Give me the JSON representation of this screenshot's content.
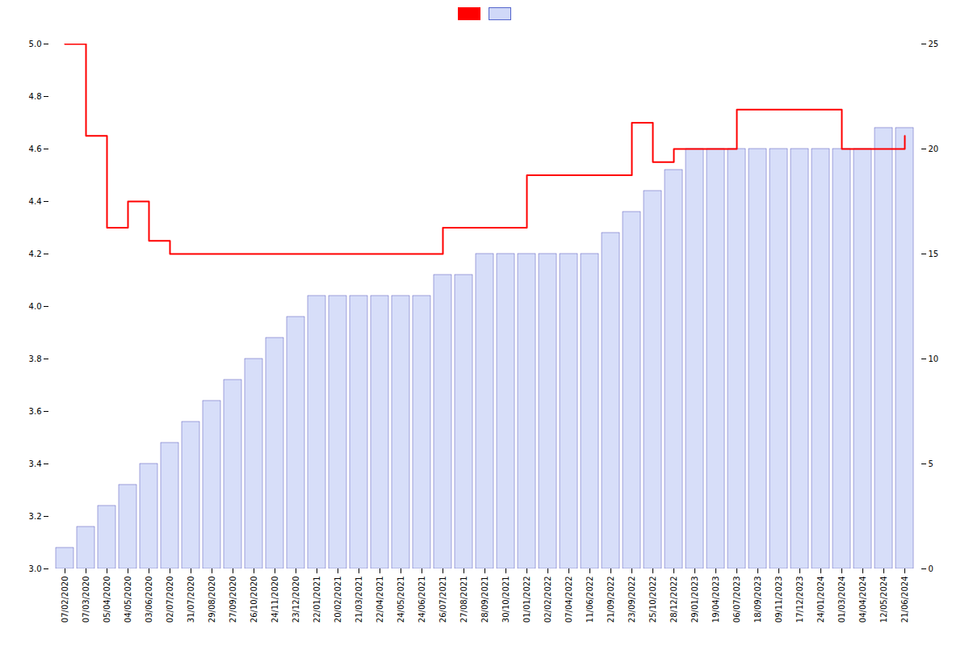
{
  "chart_data": {
    "type": "bar",
    "categories": [
      "07/02/2020",
      "07/03/2020",
      "05/04/2020",
      "04/05/2020",
      "03/06/2020",
      "02/07/2020",
      "31/07/2020",
      "29/08/2020",
      "27/09/2020",
      "26/10/2020",
      "24/11/2020",
      "23/12/2020",
      "22/01/2021",
      "20/02/2021",
      "21/03/2021",
      "22/04/2021",
      "24/05/2021",
      "24/06/2021",
      "26/07/2021",
      "27/08/2021",
      "28/09/2021",
      "30/10/2021",
      "01/01/2022",
      "02/02/2022",
      "07/04/2022",
      "11/06/2022",
      "21/09/2022",
      "23/09/2022",
      "25/10/2022",
      "28/12/2022",
      "29/01/2023",
      "19/04/2023",
      "06/07/2023",
      "18/09/2023",
      "09/11/2023",
      "17/12/2023",
      "24/01/2024",
      "01/03/2024",
      "04/04/2024",
      "12/05/2024",
      "21/06/2024"
    ],
    "series": [
      {
        "type": "step",
        "color": "#ff0000",
        "values": [
          5.0,
          4.65,
          4.3,
          4.4,
          4.25,
          4.2,
          4.2,
          4.2,
          4.2,
          4.2,
          4.2,
          4.2,
          4.2,
          4.2,
          4.2,
          4.2,
          4.2,
          4.2,
          4.3,
          4.3,
          4.3,
          4.3,
          4.5,
          4.5,
          4.5,
          4.5,
          4.5,
          4.7,
          4.55,
          4.6,
          4.6,
          4.6,
          4.75,
          4.75,
          4.75,
          4.75,
          4.75,
          4.6,
          4.6,
          4.6,
          4.65
        ]
      },
      {
        "type": "bar",
        "color": "#d0d8f8",
        "axis": "y2",
        "values": [
          1,
          2,
          3,
          4,
          5,
          6,
          7,
          8,
          9,
          10,
          11,
          12,
          13,
          13,
          13,
          13,
          13,
          13,
          14,
          14,
          15,
          15,
          15,
          15,
          15,
          15,
          16,
          17,
          18,
          19,
          20,
          20,
          20,
          20,
          20,
          20,
          20,
          20,
          20,
          21,
          21
        ]
      }
    ],
    "ylim": [
      3.0,
      5.0
    ],
    "yticks": [
      {
        "value": 3.0,
        "label": "3.0"
      },
      3.2,
      3.4,
      3.6,
      3.8,
      {
        "value": 4.0,
        "label": "4.0"
      },
      4.2,
      4.4,
      4.6,
      4.8,
      {
        "value": 5.0,
        "label": "5.0"
      }
    ],
    "y2lim": [
      0,
      25
    ],
    "y2ticks": [
      0,
      5,
      10,
      15,
      20,
      25
    ],
    "grid": false,
    "legend": "top"
  }
}
